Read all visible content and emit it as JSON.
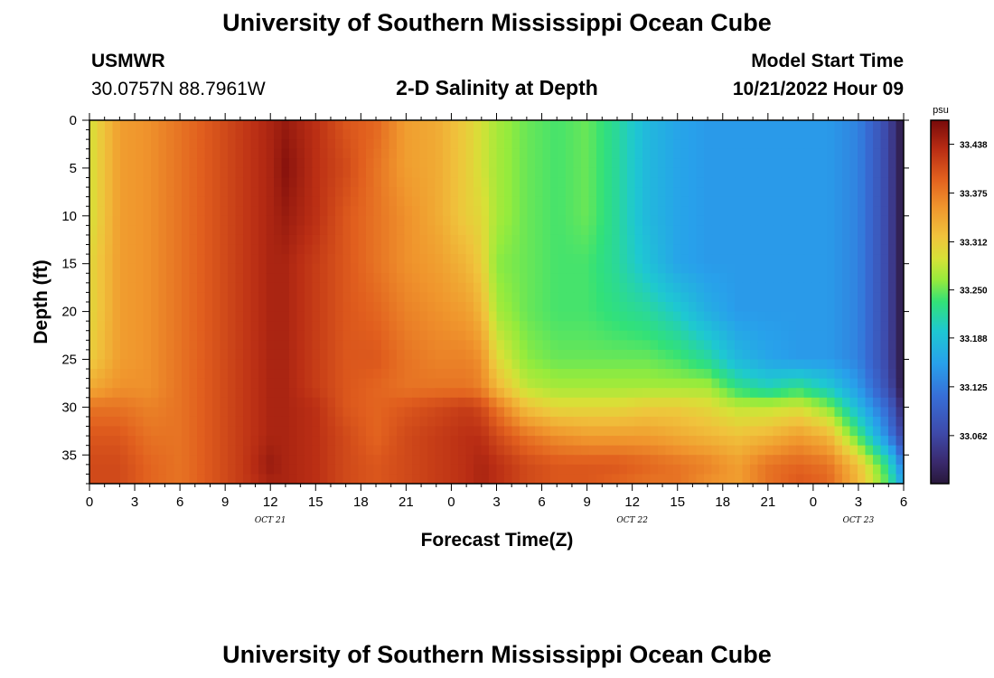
{
  "header": {
    "title": "University of Southern Mississippi Ocean Cube",
    "station": "USMWR",
    "coords": "30.0757N  88.7961W",
    "subtitle": "2-D Salinity at Depth",
    "start_label": "Model Start Time",
    "start_value": "10/21/2022 Hour 09"
  },
  "footer": {
    "title": "University of Southern Mississippi Ocean Cube"
  },
  "colorbar": {
    "unit": "psu",
    "tick_labels": [
      "33.438",
      "33.375",
      "33.312",
      "33.250",
      "33.188",
      "33.125",
      "33.062"
    ],
    "min": 33.0,
    "max": 33.469
  },
  "chart_data": {
    "type": "heatmap",
    "title": "2-D Salinity at Depth",
    "xlabel": "Forecast Time(Z)",
    "ylabel": "Depth (ft)",
    "x_tick_labels": [
      "0",
      "3",
      "6",
      "9",
      "12",
      "15",
      "18",
      "21",
      "0",
      "3",
      "6",
      "9",
      "12",
      "15",
      "18",
      "21",
      "0",
      "3",
      "6"
    ],
    "x_date_labels": [
      "OCT 21",
      "OCT 22",
      "OCT 23"
    ],
    "x_range_hours": [
      0,
      54
    ],
    "y_tick_labels": [
      "0",
      "5",
      "10",
      "15",
      "20",
      "25",
      "30",
      "35"
    ],
    "y_range_ft": [
      0,
      38
    ],
    "units": "psu",
    "value_range": [
      33.0,
      33.469
    ],
    "depths_ft": [
      0,
      5,
      10,
      15,
      20,
      25,
      28,
      30,
      33,
      36,
      38
    ],
    "hours": [
      0,
      2,
      4,
      6,
      8,
      10,
      12,
      13,
      15,
      17,
      19,
      21,
      23,
      25,
      26,
      27,
      29,
      31,
      33,
      35,
      37,
      39,
      41,
      43,
      45,
      47,
      49,
      51,
      53,
      54
    ],
    "values": [
      [
        33.29,
        33.35,
        33.36,
        33.38,
        33.4,
        33.42,
        33.44,
        33.45,
        33.43,
        33.4,
        33.39,
        33.35,
        33.34,
        33.31,
        33.29,
        33.27,
        33.25,
        33.24,
        33.25,
        33.22,
        33.18,
        33.16,
        33.15,
        33.15,
        33.15,
        33.15,
        33.15,
        33.13,
        33.06,
        33.0
      ],
      [
        33.29,
        33.35,
        33.36,
        33.38,
        33.4,
        33.42,
        33.44,
        33.46,
        33.43,
        33.41,
        33.38,
        33.35,
        33.34,
        33.31,
        33.29,
        33.27,
        33.25,
        33.24,
        33.25,
        33.22,
        33.18,
        33.16,
        33.15,
        33.15,
        33.15,
        33.15,
        33.15,
        33.13,
        33.06,
        33.0
      ],
      [
        33.29,
        33.35,
        33.36,
        33.38,
        33.4,
        33.42,
        33.44,
        33.45,
        33.43,
        33.4,
        33.38,
        33.36,
        33.34,
        33.31,
        33.3,
        33.27,
        33.25,
        33.24,
        33.25,
        33.22,
        33.18,
        33.16,
        33.15,
        33.15,
        33.15,
        33.15,
        33.15,
        33.13,
        33.06,
        33.0
      ],
      [
        33.3,
        33.35,
        33.36,
        33.38,
        33.4,
        33.42,
        33.44,
        33.44,
        33.42,
        33.4,
        33.38,
        33.36,
        33.35,
        33.33,
        33.31,
        33.26,
        33.25,
        33.24,
        33.24,
        33.22,
        33.19,
        33.16,
        33.15,
        33.15,
        33.15,
        33.15,
        33.15,
        33.13,
        33.06,
        33.0
      ],
      [
        33.3,
        33.35,
        33.36,
        33.38,
        33.4,
        33.42,
        33.44,
        33.44,
        33.42,
        33.4,
        33.39,
        33.37,
        33.36,
        33.35,
        33.33,
        33.27,
        33.25,
        33.24,
        33.24,
        33.23,
        33.22,
        33.2,
        33.17,
        33.15,
        33.15,
        33.15,
        33.15,
        33.13,
        33.06,
        33.0
      ],
      [
        33.31,
        33.35,
        33.36,
        33.38,
        33.4,
        33.42,
        33.44,
        33.44,
        33.42,
        33.4,
        33.4,
        33.38,
        33.37,
        33.37,
        33.36,
        33.3,
        33.26,
        33.25,
        33.25,
        33.25,
        33.25,
        33.24,
        33.22,
        33.18,
        33.16,
        33.15,
        33.15,
        33.13,
        33.06,
        33.0
      ],
      [
        33.34,
        33.36,
        33.36,
        33.38,
        33.4,
        33.42,
        33.44,
        33.44,
        33.42,
        33.4,
        33.39,
        33.38,
        33.38,
        33.38,
        33.37,
        33.33,
        33.28,
        33.27,
        33.27,
        33.27,
        33.27,
        33.27,
        33.27,
        33.23,
        33.21,
        33.23,
        33.2,
        33.15,
        33.07,
        33.0
      ],
      [
        33.38,
        33.38,
        33.37,
        33.38,
        33.4,
        33.42,
        33.44,
        33.44,
        33.43,
        33.4,
        33.39,
        33.4,
        33.41,
        33.42,
        33.41,
        33.38,
        33.32,
        33.3,
        33.3,
        33.3,
        33.31,
        33.31,
        33.3,
        33.28,
        33.28,
        33.29,
        33.26,
        33.18,
        33.1,
        33.02
      ],
      [
        33.4,
        33.4,
        33.38,
        33.38,
        33.4,
        33.42,
        33.44,
        33.44,
        33.43,
        33.41,
        33.39,
        33.41,
        33.42,
        33.43,
        33.43,
        33.41,
        33.38,
        33.36,
        33.35,
        33.35,
        33.35,
        33.34,
        33.33,
        33.32,
        33.33,
        33.35,
        33.33,
        33.24,
        33.13,
        33.05
      ],
      [
        33.41,
        33.41,
        33.39,
        33.38,
        33.4,
        33.42,
        33.45,
        33.44,
        33.43,
        33.41,
        33.4,
        33.41,
        33.42,
        33.43,
        33.44,
        33.43,
        33.41,
        33.4,
        33.4,
        33.4,
        33.39,
        33.38,
        33.37,
        33.35,
        33.38,
        33.39,
        33.38,
        33.32,
        33.22,
        33.12
      ],
      [
        33.41,
        33.41,
        33.39,
        33.38,
        33.4,
        33.42,
        33.44,
        33.44,
        33.43,
        33.41,
        33.4,
        33.41,
        33.42,
        33.43,
        33.44,
        33.43,
        33.41,
        33.4,
        33.4,
        33.39,
        33.38,
        33.38,
        33.36,
        33.35,
        33.38,
        33.4,
        33.39,
        33.33,
        33.24,
        33.15
      ]
    ]
  }
}
